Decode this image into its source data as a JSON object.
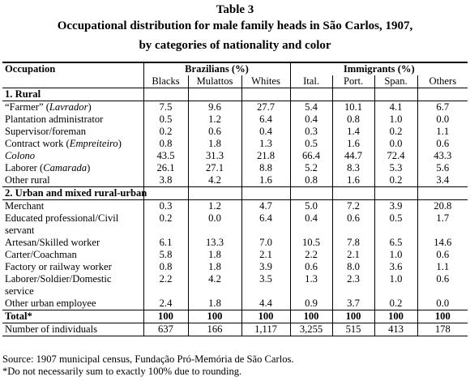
{
  "title_lines": [
    "Table 3",
    "Occupational distribution for male family heads in São Carlos, 1907,",
    "by categories of nationality and color"
  ],
  "header": {
    "occupation": "Occupation",
    "brazilians": "Brazilians (%)",
    "immigrants": "Immigrants (%)",
    "columns": [
      "Blacks",
      "Mulattos",
      "Whites",
      "Ital.",
      "Port.",
      "Span.",
      "Others"
    ]
  },
  "sections": [
    {
      "label": "1. Rural",
      "rows": [
        {
          "occ": "“Farmer” (",
          "occ_it": "Lavrador",
          "occ_post": ")",
          "values": [
            "7.5",
            "9.6",
            "27.7",
            "5.4",
            "10.1",
            "4.1",
            "6.7"
          ]
        },
        {
          "occ": "Plantation administrator",
          "occ_it": "",
          "occ_post": "",
          "values": [
            "0.5",
            "1.2",
            "6.4",
            "0.4",
            "0.8",
            "1.0",
            "0.0"
          ]
        },
        {
          "occ": "Supervisor/foreman",
          "occ_it": "",
          "occ_post": "",
          "values": [
            "0.2",
            "0.6",
            "0.4",
            "0.3",
            "1.4",
            "0.2",
            "1.1"
          ]
        },
        {
          "occ": "Contract work (",
          "occ_it": "Empreiteiro",
          "occ_post": ")",
          "values": [
            "0.8",
            "1.8",
            "1.3",
            "0.5",
            "1.6",
            "0.0",
            "0.6"
          ]
        },
        {
          "occ": "",
          "occ_it": "Colono",
          "occ_post": "",
          "values": [
            "43.5",
            "31.3",
            "21.8",
            "66.4",
            "44.7",
            "72.4",
            "43.3"
          ]
        },
        {
          "occ": "Laborer (",
          "occ_it": "Camarada",
          "occ_post": ")",
          "values": [
            "26.1",
            "27.1",
            "8.8",
            "5.2",
            "8.3",
            "5.3",
            "5.6"
          ]
        },
        {
          "occ": "Other rural",
          "occ_it": "",
          "occ_post": "",
          "values": [
            "3.8",
            "4.2",
            "1.6",
            "0.8",
            "1.6",
            "0.2",
            "3.4"
          ]
        }
      ]
    },
    {
      "label": "2. Urban and mixed rural-urban",
      "rows": [
        {
          "occ": "Merchant",
          "occ_it": "",
          "occ_post": "",
          "values": [
            "0.3",
            "1.2",
            "4.7",
            "5.0",
            "7.2",
            "3.9",
            "20.8"
          ]
        },
        {
          "occ": "Educated professional/Civil servant",
          "occ_it": "",
          "occ_post": "",
          "values": [
            "0.2",
            "0.0",
            "6.4",
            "0.4",
            "0.6",
            "0.5",
            "1.7"
          ]
        },
        {
          "occ": "Artesan/Skilled worker",
          "occ_it": "",
          "occ_post": "",
          "values": [
            "6.1",
            "13.3",
            "7.0",
            "10.5",
            "7.8",
            "6.5",
            "14.6"
          ]
        },
        {
          "occ": "Carter/Coachman",
          "occ_it": "",
          "occ_post": "",
          "values": [
            "5.8",
            "1.8",
            "2.1",
            "2.2",
            "2.1",
            "1.0",
            "0.6"
          ]
        },
        {
          "occ": "Factory or railway worker",
          "occ_it": "",
          "occ_post": "",
          "values": [
            "0.8",
            "1.8",
            "3.9",
            "0.6",
            "8.0",
            "3.6",
            "1.1"
          ]
        },
        {
          "occ": "Laborer/Soldier/Domestic service",
          "occ_it": "",
          "occ_post": "",
          "values": [
            "2.2",
            "4.2",
            "3.5",
            "1.3",
            "2.3",
            "1.0",
            "0.6"
          ]
        },
        {
          "occ": "Other urban employee",
          "occ_it": "",
          "occ_post": "",
          "values": [
            "2.4",
            "1.8",
            "4.4",
            "0.9",
            "3.7",
            "0.2",
            "0.0"
          ]
        }
      ]
    }
  ],
  "total": {
    "label": "Total*",
    "values": [
      "100",
      "100",
      "100",
      "100",
      "100",
      "100",
      "100"
    ]
  },
  "individuals": {
    "label": "Number of individuals",
    "values": [
      "637",
      "166",
      "1,117",
      "3,255",
      "515",
      "413",
      "178"
    ]
  },
  "notes": [
    "Source: 1907 municipal census, Fundação Pró-Memória de São Carlos.",
    "*Do not necessarily sum to exactly 100% due to rounding."
  ]
}
